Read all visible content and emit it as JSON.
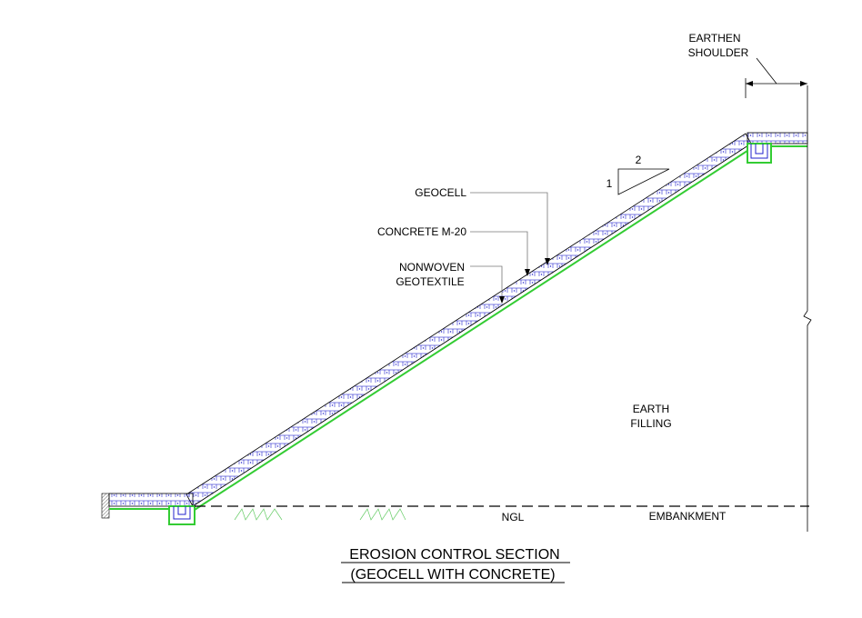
{
  "labels": {
    "earthen_shoulder_1": "EARTHEN",
    "earthen_shoulder_2": "SHOULDER",
    "slope_h": "2",
    "slope_v": "1",
    "geocell": "GEOCELL",
    "concrete": "CONCRETE M-20",
    "nonwoven_1": "NONWOVEN",
    "nonwoven_2": "GEOTEXTILE",
    "earth_filling_1": "EARTH",
    "earth_filling_2": "FILLING",
    "ngl": "NGL",
    "embankment": "EMBANKMENT"
  },
  "title": {
    "line1": "EROSION CONTROL SECTION",
    "line2": "(GEOCELL WITH CONCRETE)"
  },
  "colors": {
    "geotextile": "#33cc33",
    "geocell": "#2222cc",
    "line": "#000000",
    "grass": "#66cc66"
  }
}
